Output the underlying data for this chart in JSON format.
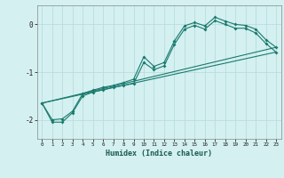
{
  "xlabel": "Humidex (Indice chaleur)",
  "ylabel": "",
  "bg_color": "#d4f0f0",
  "grid_color": "#b8dede",
  "line_color": "#1a7a6e",
  "xlim": [
    -0.5,
    23.5
  ],
  "ylim": [
    -2.4,
    0.4
  ],
  "yticks": [
    0,
    -1,
    -2
  ],
  "xticks": [
    0,
    1,
    2,
    3,
    4,
    5,
    6,
    7,
    8,
    9,
    10,
    11,
    12,
    13,
    14,
    15,
    16,
    17,
    18,
    19,
    20,
    21,
    22,
    23
  ],
  "line1_x": [
    0,
    1,
    2,
    3,
    4,
    5,
    6,
    7,
    8,
    9,
    10,
    11,
    12,
    13,
    14,
    15,
    16,
    17,
    18,
    19,
    20,
    21,
    22,
    23
  ],
  "line1_y": [
    -1.65,
    -2.0,
    -1.98,
    -1.82,
    -1.45,
    -1.38,
    -1.32,
    -1.28,
    -1.22,
    -1.15,
    -0.68,
    -0.88,
    -0.8,
    -0.35,
    -0.03,
    0.04,
    -0.03,
    0.15,
    0.07,
    0.0,
    -0.02,
    -0.1,
    -0.32,
    -0.48
  ],
  "line2_x": [
    0,
    1,
    2,
    3,
    4,
    5,
    6,
    7,
    8,
    9,
    10,
    11,
    12,
    13,
    14,
    15,
    16,
    17,
    18,
    19,
    20,
    21,
    22,
    23
  ],
  "line2_y": [
    -1.65,
    -2.05,
    -2.05,
    -1.85,
    -1.5,
    -1.42,
    -1.37,
    -1.32,
    -1.28,
    -1.24,
    -0.8,
    -0.95,
    -0.87,
    -0.42,
    -0.1,
    -0.02,
    -0.1,
    0.08,
    0.0,
    -0.08,
    -0.08,
    -0.18,
    -0.4,
    -0.58
  ],
  "line3_x": [
    0,
    23
  ],
  "line3_y": [
    -1.65,
    -0.48
  ],
  "line4_x": [
    0,
    23
  ],
  "line4_y": [
    -1.65,
    -0.58
  ],
  "markers1_x": [
    0,
    1,
    2,
    3,
    4,
    5,
    6,
    7,
    8,
    9,
    10,
    11,
    12,
    13,
    14,
    15,
    16,
    17,
    18,
    19,
    20,
    21,
    22,
    23
  ],
  "markers1_y": [
    -1.65,
    -2.0,
    -1.98,
    -1.82,
    -1.45,
    -1.38,
    -1.32,
    -1.28,
    -1.22,
    -1.15,
    -0.68,
    -0.88,
    -0.8,
    -0.35,
    -0.03,
    0.04,
    -0.03,
    0.15,
    0.07,
    0.0,
    -0.02,
    -0.1,
    -0.32,
    -0.48
  ],
  "markers2_x": [
    0,
    1,
    2,
    3,
    4,
    5,
    6,
    7,
    8,
    9,
    10,
    11,
    12,
    13,
    14,
    15,
    16,
    17,
    18,
    19,
    20,
    21,
    22,
    23
  ],
  "markers2_y": [
    -1.65,
    -2.05,
    -2.05,
    -1.85,
    -1.5,
    -1.42,
    -1.37,
    -1.32,
    -1.28,
    -1.24,
    -0.8,
    -0.95,
    -0.87,
    -0.42,
    -0.1,
    -0.02,
    -0.1,
    0.08,
    0.0,
    -0.08,
    -0.08,
    -0.18,
    -0.4,
    -0.58
  ]
}
